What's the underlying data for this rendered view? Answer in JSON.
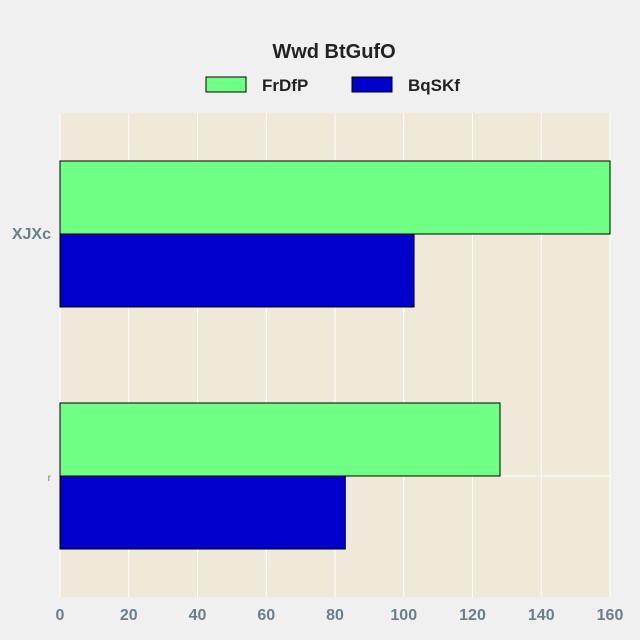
{
  "chart_data": {
    "type": "bar",
    "orientation": "horizontal",
    "title": "Wwd BtGufO",
    "xlabel": "",
    "ylabel": "",
    "categories": [
      "XJXc",
      "r"
    ],
    "series": [
      {
        "name": "FrDfP",
        "values": [
          160,
          128
        ],
        "color": "#70ff85"
      },
      {
        "name": "BqSKf",
        "values": [
          103,
          83
        ],
        "color": "#0000cc"
      }
    ],
    "xlim": [
      0,
      160
    ],
    "xticks": [
      0,
      20,
      40,
      60,
      80,
      100,
      120,
      140,
      160
    ],
    "grid": true,
    "legend_position": "top-center",
    "plot_background": "#efe9d9",
    "page_background": "#f0f0f0",
    "grid_color": "#ffffff",
    "bar_edge_color": "#000000",
    "tick_label_color": "#6b7f8a"
  }
}
